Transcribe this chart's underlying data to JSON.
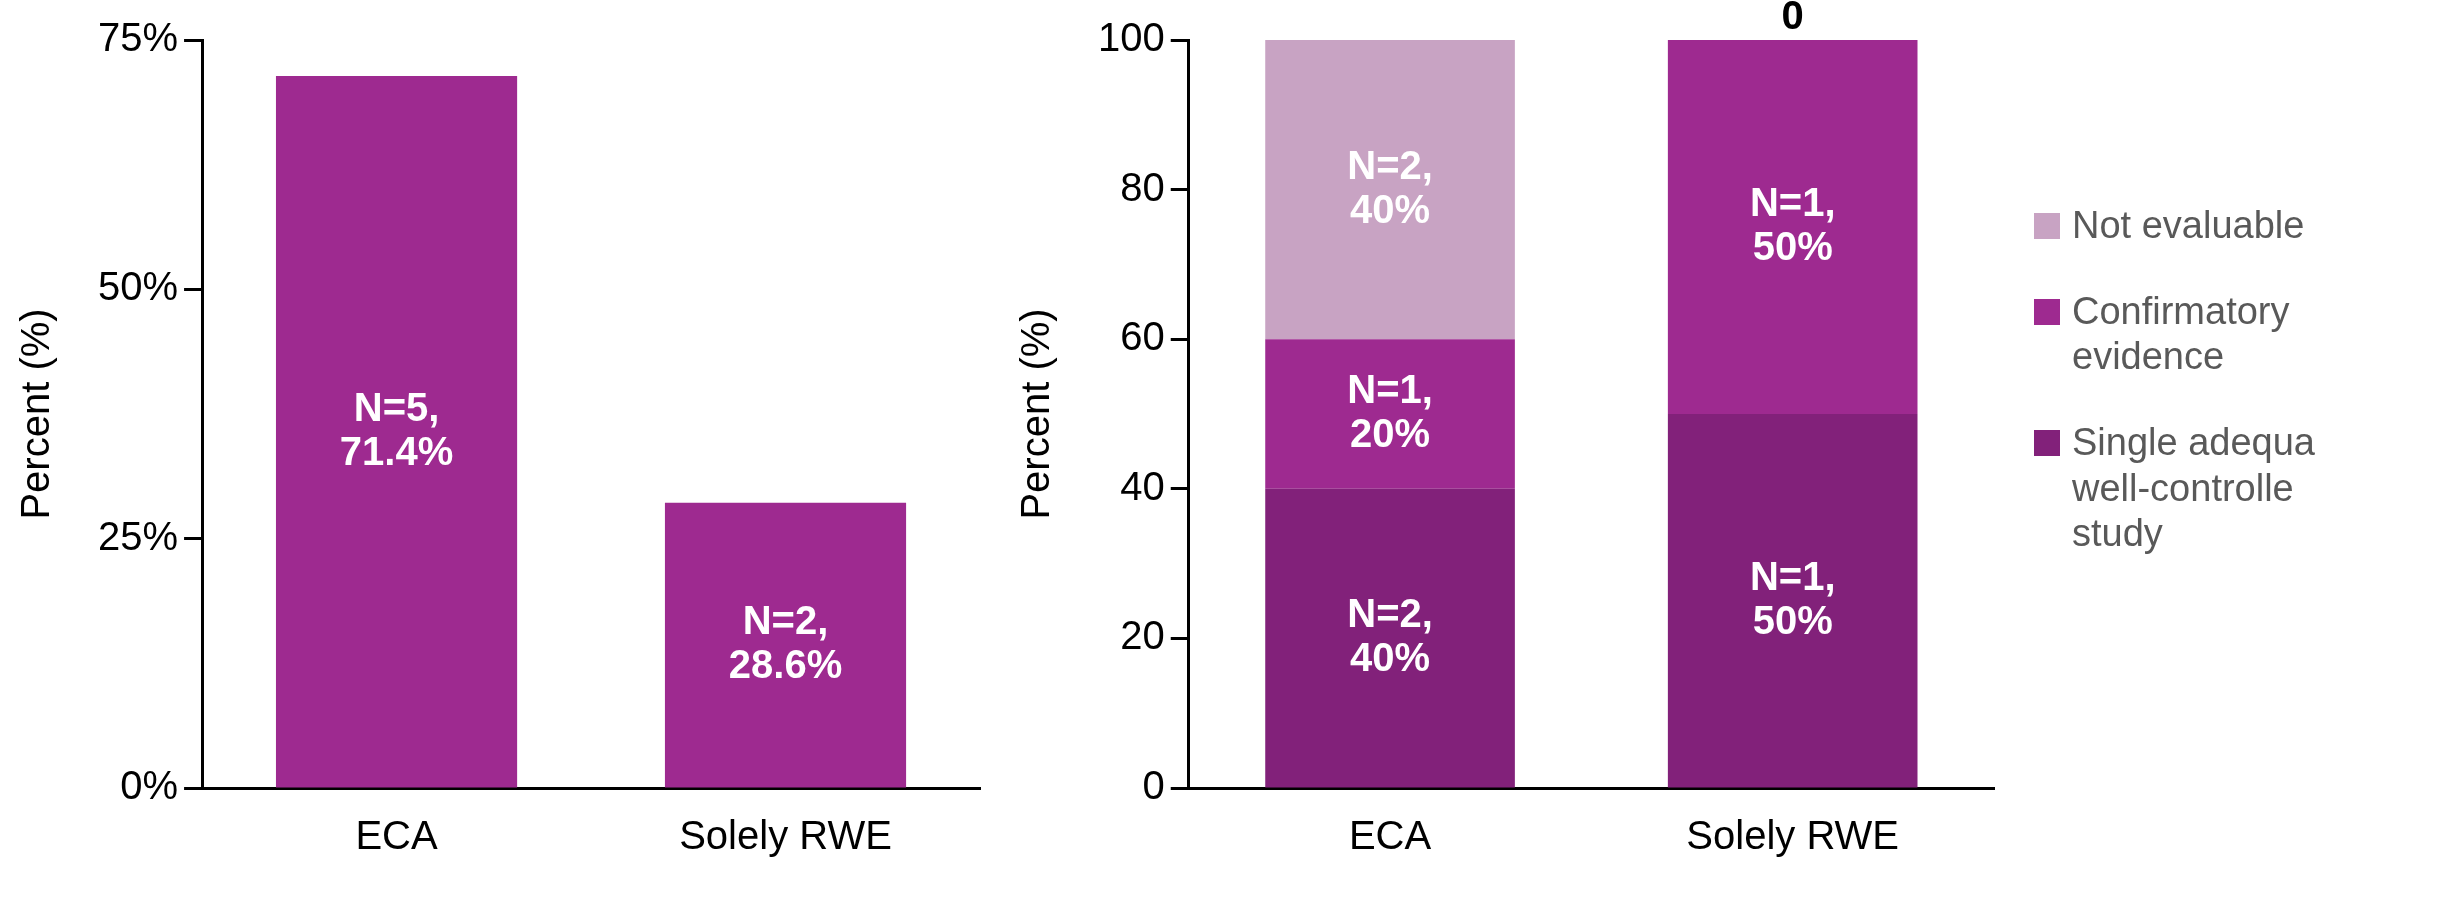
{
  "chart_data": [
    {
      "type": "bar",
      "ylabel": "Percent (%)",
      "categories": [
        "ECA",
        "Solely RWE"
      ],
      "values": [
        71.4,
        28.6
      ],
      "color": "#9e2a90",
      "ylim": [
        0,
        75
      ],
      "yticks": [
        {
          "value": 0,
          "label": "0%"
        },
        {
          "value": 25,
          "label": "25%"
        },
        {
          "value": 50,
          "label": "50%"
        },
        {
          "value": 75,
          "label": "75%"
        }
      ],
      "value_labels": [
        "N=5, 71.4%",
        "N=2, 28.6%"
      ]
    },
    {
      "type": "bar",
      "stacked": true,
      "ylabel": "Percent (%)",
      "categories": [
        "ECA",
        "Solely RWE"
      ],
      "ylim": [
        0,
        100
      ],
      "yticks": [
        0,
        20,
        40,
        60,
        80,
        100
      ],
      "legend": "right",
      "series": [
        {
          "name": "Single adequa well-controlle study",
          "color": "#82217a",
          "values": [
            40,
            50
          ],
          "value_labels": [
            "N=2, 40%",
            "N=1, 50%"
          ]
        },
        {
          "name": "Confirmatory evidence",
          "color": "#9e2a90",
          "values": [
            20,
            50
          ],
          "value_labels": [
            "N=1, 20%",
            "N=1, 50%"
          ]
        },
        {
          "name": "Not evaluable",
          "color": "#c8a3c3",
          "values": [
            40,
            0
          ],
          "value_labels": [
            "N=2, 40%",
            "0"
          ]
        }
      ]
    }
  ]
}
